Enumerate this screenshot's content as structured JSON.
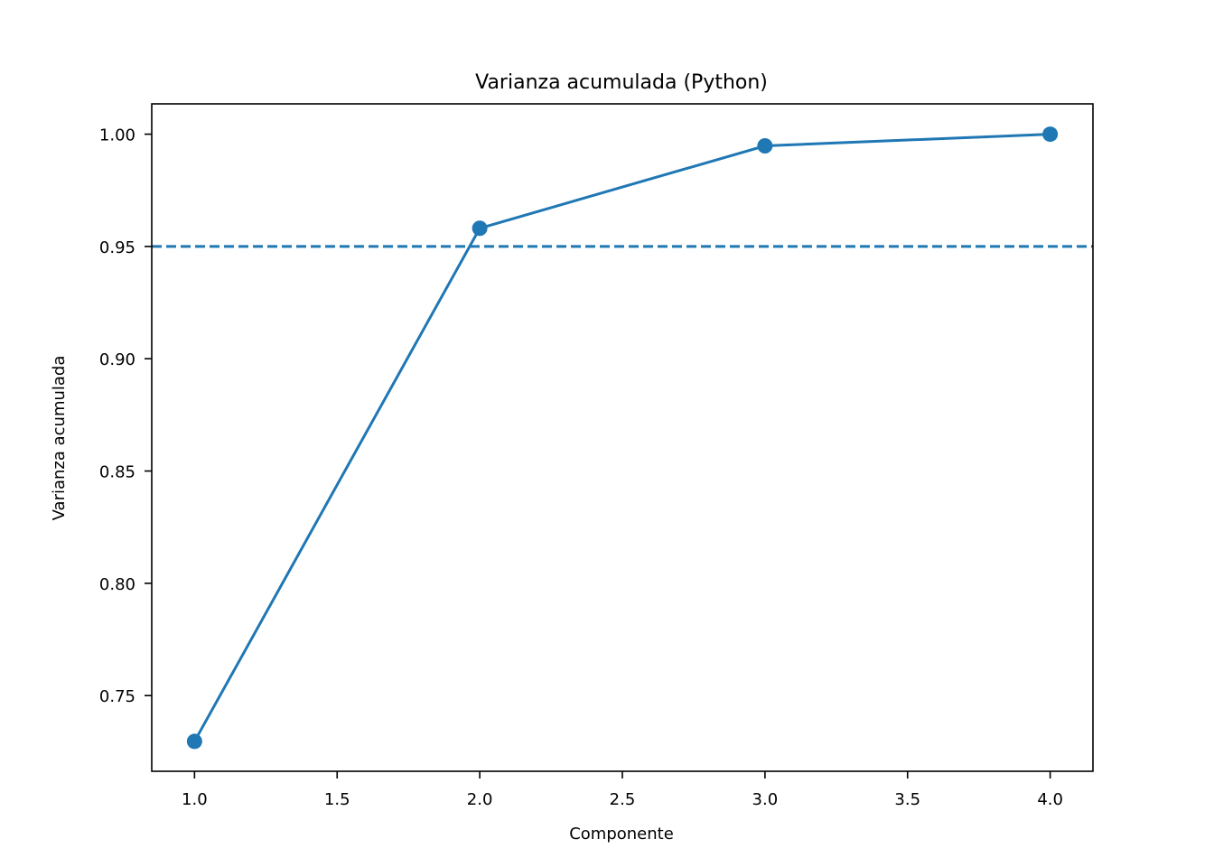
{
  "chart_data": {
    "type": "line",
    "title": "Varianza acumulada (Python)",
    "xlabel": "Componente",
    "ylabel": "Varianza acumulada",
    "x": [
      1,
      2,
      3,
      4
    ],
    "series": [
      {
        "values": [
          0.7296,
          0.9581,
          0.9948,
          1.0
        ],
        "color": "#1f77b4",
        "marker": "circle"
      }
    ],
    "reference_line": {
      "y": 0.95,
      "style": "dashed",
      "color": "#1f77b4"
    },
    "xlim": [
      0.85,
      4.15
    ],
    "ylim": [
      0.7163,
      1.0135
    ],
    "xticks": [
      1.0,
      1.5,
      2.0,
      2.5,
      3.0,
      3.5,
      4.0
    ],
    "xtick_labels": [
      "1.0",
      "1.5",
      "2.0",
      "2.5",
      "3.0",
      "3.5",
      "4.0"
    ],
    "yticks": [
      0.75,
      0.8,
      0.85,
      0.9,
      0.95,
      1.0
    ],
    "ytick_labels": [
      "0.75",
      "0.80",
      "0.85",
      "0.90",
      "0.95",
      "1.00"
    ],
    "grid": false,
    "legend": "none"
  }
}
